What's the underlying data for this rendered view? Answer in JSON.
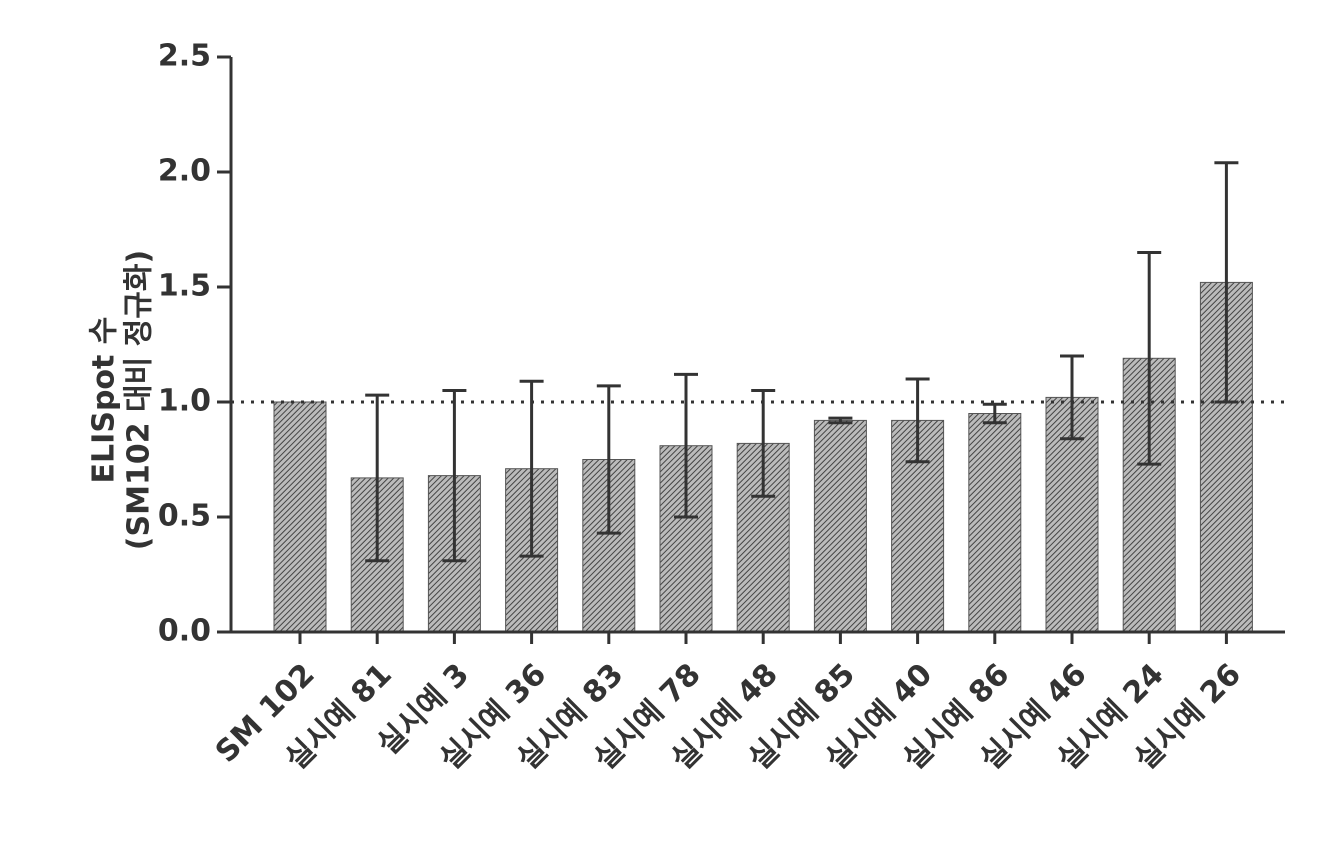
{
  "chart_data": {
    "type": "bar",
    "y_label_lines": [
      "ELISpot 수",
      "(SM102 대비 정규화)"
    ],
    "categories": [
      "SM 102",
      "실시예 81",
      "실시예 3",
      "실시예 36",
      "실시예 83",
      "실시예 78",
      "실시예 48",
      "실시예 85",
      "실시예 40",
      "실시예 86",
      "실시예 46",
      "실시예 24",
      "실시예 26"
    ],
    "values": [
      1.0,
      0.67,
      0.68,
      0.71,
      0.75,
      0.81,
      0.82,
      0.92,
      0.92,
      0.95,
      1.02,
      1.19,
      1.52
    ],
    "errors": [
      null,
      0.36,
      0.37,
      0.38,
      0.32,
      0.31,
      0.23,
      0.01,
      0.18,
      0.04,
      0.18,
      0.46,
      0.52
    ],
    "color": "#555555",
    "reference_line": 1,
    "ylim": [
      0,
      2.5
    ],
    "yticks": [
      {
        "value": 0,
        "label": "0.0"
      },
      {
        "value": 0.5,
        "label": "0.5"
      },
      {
        "value": 1,
        "label": "1.0"
      },
      {
        "value": 1.5,
        "label": "1.5"
      },
      {
        "value": 2,
        "label": "2.0"
      },
      {
        "value": 2.5,
        "label": "2.5"
      }
    ]
  }
}
